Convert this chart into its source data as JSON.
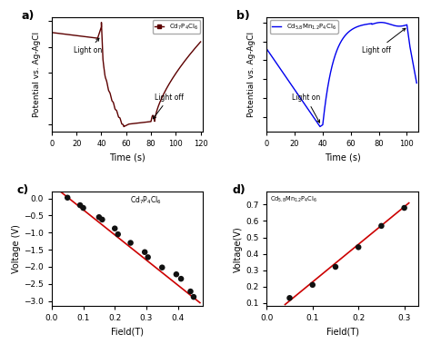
{
  "panel_a": {
    "label": "a)",
    "legend_label": "Cd$_7$P$_4$Cl$_6$",
    "color": "#5C0000",
    "xlabel": "Time (s)",
    "ylabel": "Potential vs. Ag-AgCl",
    "xticks": [
      0,
      20,
      40,
      60,
      80,
      100,
      120
    ],
    "xlim": [
      0,
      122
    ],
    "annotation1": "Light on",
    "annotation2": "Light off"
  },
  "panel_b": {
    "label": "b)",
    "legend_label": "Cd$_{5.8}$Mn$_{1.2}$P$_4$Cl$_6$",
    "color": "#0000EE",
    "xlabel": "Time (s)",
    "ylabel": "Potential vs. Ag-AgCl",
    "xticks": [
      0,
      20,
      40,
      60,
      80,
      100
    ],
    "xlim": [
      0,
      108
    ],
    "annotation1": "Light on",
    "annotation2": "Light off"
  },
  "panel_c": {
    "label": "c)",
    "text_label": "Cd$_7$P$_4$Cl$_6$",
    "xlabel": "Field(T)",
    "ylabel": "Voltage (V)",
    "xlim": [
      0.02,
      0.48
    ],
    "ylim": [
      -3.15,
      0.2
    ],
    "xticks": [
      0.0,
      0.1,
      0.2,
      0.3,
      0.4
    ],
    "yticks": [
      0.0,
      -0.5,
      -1.0,
      -1.5,
      -2.0,
      -2.5,
      -3.0
    ],
    "scatter_x": [
      0.05,
      0.09,
      0.1,
      0.15,
      0.16,
      0.2,
      0.21,
      0.25,
      0.295,
      0.305,
      0.35,
      0.395,
      0.41,
      0.44,
      0.45
    ],
    "scatter_y": [
      0.02,
      -0.2,
      -0.28,
      -0.55,
      -0.62,
      -0.88,
      -1.05,
      -1.3,
      -1.57,
      -1.72,
      -2.02,
      -2.22,
      -2.35,
      -2.72,
      -2.88
    ],
    "fit_x": [
      0.03,
      0.47
    ],
    "fit_y": [
      0.18,
      -3.05
    ],
    "line_color": "#CC0000",
    "scatter_color": "#111111"
  },
  "panel_d": {
    "label": "d)",
    "text_label": "Cd$_{5.8}$Mn$_{1.2}$P$_4$Cl$_6$",
    "xlabel": "Field(T)",
    "ylabel": "Voltage(V)",
    "xlim": [
      0.02,
      0.33
    ],
    "ylim": [
      0.08,
      0.78
    ],
    "xticks": [
      0.0,
      0.1,
      0.2,
      0.3
    ],
    "yticks": [
      0.1,
      0.2,
      0.3,
      0.4,
      0.5,
      0.6,
      0.7
    ],
    "scatter_x": [
      0.05,
      0.1,
      0.15,
      0.2,
      0.25,
      0.3
    ],
    "scatter_y": [
      0.13,
      0.21,
      0.32,
      0.44,
      0.57,
      0.68
    ],
    "fit_x": [
      0.04,
      0.31
    ],
    "fit_y": [
      0.09,
      0.71
    ],
    "line_color": "#CC0000",
    "scatter_color": "#111111"
  }
}
